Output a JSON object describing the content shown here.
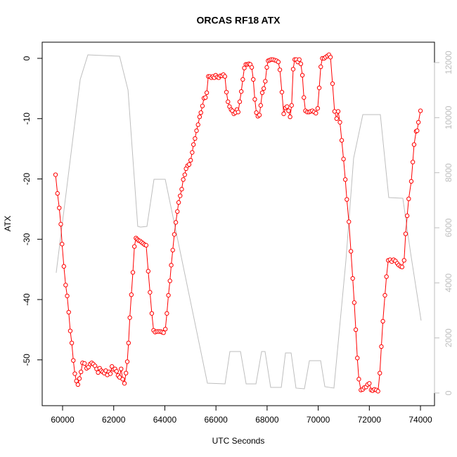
{
  "chart_data": {
    "type": "line",
    "title": "ORCAS RF18 ATX",
    "x_label": "UTC Seconds",
    "y_label": "ATX",
    "xlim": [
      59202,
      74549
    ],
    "xticks": [
      60000,
      62000,
      64000,
      66000,
      68000,
      70000,
      72000,
      74000
    ],
    "ylim": [
      -57.6,
      2.68
    ],
    "yticks": [
      0,
      -10,
      -20,
      -30,
      -40,
      -50
    ],
    "y2lim": [
      -460,
      12740
    ],
    "y2ticks": [
      0,
      2000,
      4000,
      6000,
      8000,
      10000,
      12000
    ],
    "series": [
      {
        "color": "#ff0000",
        "marker": "circle",
        "x": [
          59725,
          59800,
          59870,
          59930,
          59980,
          60050,
          60120,
          60180,
          60240,
          60300,
          60360,
          60420,
          60480,
          60540,
          60600,
          60660,
          60720,
          60780,
          60860,
          60940,
          61010,
          61080,
          61140,
          61200,
          61270,
          61330,
          61390,
          61450,
          61510,
          61570,
          61630,
          61690,
          61750,
          61810,
          61870,
          61930,
          61990,
          62050,
          62110,
          62170,
          62230,
          62290,
          62350,
          62420,
          62480,
          62530,
          62580,
          62630,
          62690,
          62750,
          62810,
          62870,
          62920,
          62970,
          63030,
          63090,
          63150,
          63210,
          63270,
          63350,
          63420,
          63490,
          63560,
          63620,
          63690,
          63760,
          63830,
          63890,
          63950,
          64020,
          64080,
          64140,
          64200,
          64250,
          64310,
          64370,
          64430,
          64490,
          64540,
          64600,
          64660,
          64720,
          64780,
          64830,
          64890,
          64950,
          65010,
          65070,
          65120,
          65180,
          65240,
          65300,
          65360,
          65410,
          65470,
          65530,
          65590,
          65640,
          65700,
          65760,
          65820,
          65880,
          65930,
          65990,
          66050,
          66110,
          66170,
          66230,
          66290,
          66350,
          66410,
          66470,
          66530,
          66590,
          66640,
          66700,
          66760,
          66820,
          66870,
          66930,
          66990,
          67050,
          67110,
          67170,
          67230,
          67290,
          67340,
          67400,
          67460,
          67520,
          67580,
          67640,
          67700,
          67750,
          67810,
          67870,
          67930,
          67990,
          68040,
          68100,
          68160,
          68230,
          68300,
          68370,
          68440,
          68500,
          68580,
          68650,
          68720,
          68780,
          68840,
          68900,
          68960,
          69020,
          69080,
          69140,
          69200,
          69260,
          69320,
          69380,
          69440,
          69500,
          69570,
          69640,
          69700,
          69770,
          69840,
          69910,
          69980,
          70040,
          70100,
          70160,
          70230,
          70290,
          70360,
          70420,
          70480,
          70560,
          70640,
          70720,
          70780,
          70850,
          70920,
          70990,
          71060,
          71120,
          71200,
          71280,
          71350,
          71410,
          71470,
          71530,
          71590,
          71670,
          71740,
          71800,
          71870,
          71930,
          72000,
          72070,
          72130,
          72200,
          72270,
          72340,
          72410,
          72470,
          72530,
          72610,
          72670,
          72740,
          72810,
          72880,
          72950,
          73020,
          73090,
          73150,
          73220,
          73280,
          73360,
          73420,
          73480,
          73540,
          73640,
          73700,
          73750,
          73830,
          73870,
          73920,
          74000
        ],
        "values": [
          -19.3,
          -22.4,
          -24.8,
          -27.5,
          -30.8,
          -34.5,
          -37.6,
          -39.4,
          -42.1,
          -45.2,
          -47.2,
          -50.1,
          -52.3,
          -53.5,
          -54.1,
          -53.1,
          -52.0,
          -50.5,
          -50.6,
          -51.4,
          -51.2,
          -50.7,
          -50.5,
          -50.7,
          -51.0,
          -51.5,
          -52.1,
          -51.4,
          -51.8,
          -52.0,
          -52.2,
          -51.8,
          -52.5,
          -52.0,
          -52.3,
          -51.1,
          -51.6,
          -51.5,
          -51.9,
          -52.6,
          -52.9,
          -51.5,
          -53.2,
          -53.9,
          -52.2,
          -50.3,
          -47.2,
          -43.0,
          -39.2,
          -35.5,
          -31.2,
          -29.8,
          -30.0,
          -30.2,
          -30.3,
          -30.5,
          -30.7,
          -30.9,
          -31.0,
          -35.3,
          -38.8,
          -42.3,
          -45.1,
          -45.4,
          -45.3,
          -45.3,
          -45.3,
          -45.4,
          -45.5,
          -44.9,
          -42.3,
          -39.3,
          -36.9,
          -34.3,
          -31.8,
          -29.2,
          -27.2,
          -25.4,
          -23.9,
          -22.8,
          -21.7,
          -20.1,
          -19.3,
          -18.3,
          -17.8,
          -17.6,
          -16.9,
          -15.6,
          -14.3,
          -13.3,
          -12.0,
          -11.0,
          -9.7,
          -9.0,
          -7.9,
          -6.6,
          -6.5,
          -5.7,
          -3.0,
          -3.0,
          -3.2,
          -3.0,
          -3.2,
          -2.8,
          -3.1,
          -3.2,
          -2.9,
          -2.9,
          -2.7,
          -3.0,
          -5.6,
          -7.2,
          -8.0,
          -8.5,
          -8.7,
          -9.2,
          -9.0,
          -8.5,
          -8.9,
          -7.2,
          -5.5,
          -3.5,
          -1.6,
          -1.0,
          -1.0,
          -0.9,
          -1.0,
          -1.5,
          -3.5,
          -6.8,
          -9.0,
          -9.6,
          -9.4,
          -7.8,
          -5.7,
          -5.0,
          -3.8,
          -1.5,
          -0.4,
          -0.3,
          -0.2,
          -0.2,
          -0.3,
          -0.4,
          -0.6,
          -1.9,
          -5.6,
          -9.2,
          -8.2,
          -8.0,
          -8.7,
          -9.7,
          -7.8,
          -1.8,
          -0.2,
          -0.2,
          -0.6,
          -0.2,
          -0.9,
          -2.8,
          -6.5,
          -8.7,
          -8.9,
          -8.9,
          -8.8,
          -8.7,
          -8.9,
          -9.1,
          -8.3,
          -4.9,
          -1.4,
          0,
          0,
          0.2,
          0.4,
          0.6,
          0.2,
          -4.2,
          -8.8,
          -10.0,
          -8.8,
          -10.6,
          -13.6,
          -16.7,
          -20.1,
          -23.4,
          -27.1,
          -32.0,
          -36.5,
          -40.5,
          -45.0,
          -49.7,
          -53.2,
          -55.0,
          -54.9,
          -54.6,
          -54.5,
          -54.1,
          -53.9,
          -55.0,
          -55.1,
          -54.9,
          -55.0,
          -55.2,
          -52.2,
          -47.8,
          -43.6,
          -39.3,
          -36.2,
          -33.5,
          -33.4,
          -33.7,
          -33.4,
          -33.6,
          -34.0,
          -34.3,
          -34.5,
          -34.6,
          -33.5,
          -29.1,
          -26.1,
          -23.3,
          -20.4,
          -17.2,
          -14.3,
          -12.1,
          -12.0,
          -10.6,
          -8.7
        ]
      },
      {
        "color": "#bebebe",
        "axis": "y2",
        "x": [
          59750,
          60690,
          60990,
          62230,
          62560,
          62940,
          63050,
          63300,
          63575,
          64015,
          65665,
          66355,
          66545,
          66960,
          67180,
          67565,
          67785,
          67920,
          68140,
          68555,
          68720,
          68940,
          69130,
          69460,
          69655,
          70095,
          70260,
          70615,
          71085,
          71385,
          71745,
          72430,
          72760,
          73310,
          73615,
          74025
        ],
        "values": [
          4366,
          11386,
          12280,
          12229,
          11003,
          6050,
          6025,
          6050,
          7761,
          7761,
          357,
          332,
          1506,
          1506,
          332,
          332,
          1506,
          1506,
          204,
          204,
          1455,
          1455,
          179,
          153,
          1174,
          1174,
          230,
          179,
          4825,
          8527,
          10110,
          10110,
          7097,
          7072,
          5080,
          2630
        ]
      }
    ]
  }
}
